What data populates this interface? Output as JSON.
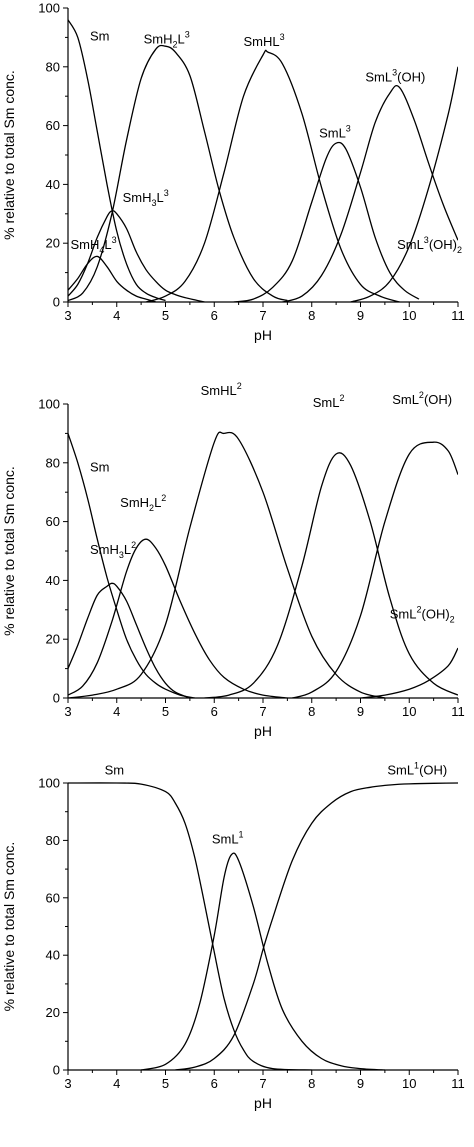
{
  "chart_data": [
    {
      "type": "line",
      "xlabel": "pH",
      "ylabel": "% relative to total Sm conc.",
      "xlim": [
        3,
        11
      ],
      "ylim": [
        0,
        100
      ],
      "xticks": [
        "3",
        "4",
        "5",
        "6",
        "7",
        "8",
        "9",
        "10",
        "11"
      ],
      "yticks": [
        "0",
        "20",
        "40",
        "60",
        "80",
        "100"
      ],
      "series": [
        {
          "name": "Sm",
          "x": [
            3,
            3.2,
            3.4,
            3.6,
            3.8,
            4,
            4.2,
            4.4,
            4.6,
            4.8,
            5
          ],
          "y": [
            96,
            90,
            76,
            58,
            40,
            24,
            13,
            6,
            3,
            1.5,
            0.5
          ]
        },
        {
          "name": "SmH4L3",
          "x": [
            3,
            3.2,
            3.4,
            3.6,
            3.8,
            4,
            4.2,
            4.4,
            4.6,
            4.8
          ],
          "y": [
            4,
            8,
            13,
            15.5,
            12,
            7,
            4,
            2,
            1,
            0
          ]
        },
        {
          "name": "SmH3L3",
          "x": [
            3,
            3.2,
            3.4,
            3.6,
            3.8,
            3.9,
            4,
            4.2,
            4.4,
            4.6,
            4.8,
            5,
            5.2,
            5.4,
            5.8
          ],
          "y": [
            2,
            6,
            13,
            22,
            29,
            31,
            30,
            25,
            17,
            11,
            7,
            4,
            2.5,
            1.5,
            0
          ]
        },
        {
          "name": "SmH2L3",
          "x": [
            3,
            3.3,
            3.6,
            3.9,
            4.2,
            4.5,
            4.8,
            5.0,
            5.2,
            5.5,
            5.8,
            6.1,
            6.4,
            6.8,
            7.2,
            7.5
          ],
          "y": [
            0.5,
            3,
            12,
            30,
            55,
            76,
            86,
            87,
            85,
            77,
            58,
            38,
            22,
            8,
            2,
            0.5
          ]
        },
        {
          "name": "SmHL3",
          "x": [
            4.6,
            5,
            5.4,
            5.8,
            6.2,
            6.6,
            7,
            7.1,
            7.4,
            7.8,
            8.2,
            8.6,
            9,
            9.4,
            9.8
          ],
          "y": [
            0,
            2,
            7,
            20,
            44,
            70,
            84,
            85,
            81,
            64,
            39,
            18,
            6,
            2,
            0
          ]
        },
        {
          "name": "SmL3",
          "x": [
            6.4,
            6.8,
            7.2,
            7.6,
            8,
            8.3,
            8.5,
            8.7,
            9,
            9.3,
            9.6,
            9.9,
            10.2
          ],
          "y": [
            0,
            1,
            5,
            14,
            34,
            49,
            54,
            52,
            39,
            22,
            10,
            4,
            1
          ]
        },
        {
          "name": "SmL3(OH)",
          "x": [
            7.4,
            7.8,
            8.2,
            8.6,
            9,
            9.3,
            9.6,
            9.8,
            10.1,
            10.4,
            10.7,
            11
          ],
          "y": [
            0,
            2,
            9,
            23,
            44,
            61,
            71,
            73,
            62,
            47,
            33,
            21
          ]
        },
        {
          "name": "SmL3(OH)2",
          "x": [
            8.8,
            9.2,
            9.6,
            10,
            10.4,
            10.8,
            11
          ],
          "y": [
            0,
            2,
            7,
            19,
            39,
            64,
            80
          ]
        }
      ],
      "annotations": [
        {
          "series": "Sm",
          "base": "Sm",
          "sub": "",
          "mid": "",
          "sub2": "",
          "sup": "",
          "tail": "",
          "x": 3.45,
          "y": 89
        },
        {
          "series": "SmH4L3",
          "base": "SmH",
          "sub": "4",
          "mid": "L",
          "sub2": "",
          "sup": "3",
          "tail": "",
          "x": 3.05,
          "y": 18
        },
        {
          "series": "SmH3L3",
          "base": "SmH",
          "sub": "3",
          "mid": "L",
          "sub2": "",
          "sup": "3",
          "tail": "",
          "x": 4.12,
          "y": 34
        },
        {
          "series": "SmH2L3",
          "base": "SmH",
          "sub": "2",
          "mid": "L",
          "sub2": "",
          "sup": "3",
          "tail": "",
          "x": 4.55,
          "y": 88
        },
        {
          "series": "SmHL3",
          "base": "SmHL",
          "sub": "",
          "mid": "",
          "sub2": "",
          "sup": "3",
          "tail": "",
          "x": 6.6,
          "y": 87
        },
        {
          "series": "SmL3",
          "base": "SmL",
          "sub": "",
          "mid": "",
          "sub2": "",
          "sup": "3",
          "tail": "",
          "x": 8.15,
          "y": 56
        },
        {
          "series": "SmL3(OH)",
          "base": "SmL",
          "sub": "",
          "mid": "",
          "sub2": "",
          "sup": "3",
          "tail": "(OH)",
          "x": 9.1,
          "y": 75
        },
        {
          "series": "SmL3(OH)2",
          "base": "SmL",
          "sub": "",
          "mid": "",
          "sub2": "",
          "sup": "3",
          "tail": "(OH)",
          "tail_sub": "2",
          "x": 9.75,
          "y": 18
        }
      ]
    },
    {
      "type": "line",
      "xlabel": "pH",
      "ylabel": "% relative to total Sm conc.",
      "xlim": [
        3,
        11
      ],
      "ylim": [
        0,
        100
      ],
      "xticks": [
        "3",
        "4",
        "5",
        "6",
        "7",
        "8",
        "9",
        "10",
        "11"
      ],
      "yticks": [
        "0",
        "20",
        "40",
        "60",
        "80",
        "100"
      ],
      "series": [
        {
          "name": "Sm",
          "x": [
            3,
            3.2,
            3.4,
            3.6,
            3.8,
            4,
            4.2,
            4.4,
            4.6,
            4.8,
            5,
            5.3,
            5.6
          ],
          "y": [
            90,
            80,
            68,
            54,
            41,
            30,
            20,
            13,
            8,
            5,
            3,
            1,
            0
          ]
        },
        {
          "name": "SmH3L2",
          "x": [
            3,
            3.2,
            3.4,
            3.6,
            3.8,
            3.9,
            4,
            4.2,
            4.4,
            4.6,
            4.8,
            5,
            5.2,
            5.5
          ],
          "y": [
            10,
            18,
            27,
            35,
            38,
            39,
            38,
            33,
            25,
            17,
            10,
            5,
            2,
            0
          ]
        },
        {
          "name": "SmH2L2",
          "x": [
            3,
            3.3,
            3.6,
            3.9,
            4.2,
            4.4,
            4.6,
            4.8,
            5,
            5.3,
            5.6,
            5.9,
            6.2,
            6.6,
            7,
            7.5
          ],
          "y": [
            1,
            4,
            12,
            26,
            43,
            51,
            54,
            51,
            45,
            33,
            22,
            13,
            7,
            3,
            1,
            0
          ]
        },
        {
          "name": "SmHL2",
          "x": [
            3,
            3.5,
            4,
            4.5,
            5,
            5.5,
            6,
            6.2,
            6.5,
            7,
            7.5,
            8,
            8.5,
            9,
            9.5
          ],
          "y": [
            0,
            1,
            3,
            8,
            25,
            58,
            87,
            90,
            88,
            70,
            44,
            21,
            8,
            2,
            0
          ]
        },
        {
          "name": "SmL2",
          "x": [
            5.8,
            6.3,
            6.8,
            7.3,
            7.8,
            8.2,
            8.5,
            8.8,
            9.2,
            9.6,
            10,
            10.5,
            11
          ],
          "y": [
            0,
            1,
            5,
            18,
            45,
            72,
            83,
            79,
            60,
            34,
            15,
            5,
            1
          ]
        },
        {
          "name": "SmL2(OH)",
          "x": [
            7.6,
            8,
            8.5,
            9,
            9.5,
            10,
            10.5,
            10.8,
            11
          ],
          "y": [
            0,
            2,
            9,
            28,
            60,
            83,
            87,
            84,
            76
          ]
        },
        {
          "name": "SmL2(OH)2",
          "x": [
            9,
            9.5,
            10,
            10.4,
            10.8,
            11
          ],
          "y": [
            0,
            1,
            3,
            6,
            11,
            17
          ]
        }
      ],
      "annotations": [
        {
          "series": "Sm",
          "base": "Sm",
          "sub": "",
          "mid": "",
          "sub2": "",
          "sup": "",
          "tail": "",
          "x": 3.45,
          "y": 77
        },
        {
          "series": "SmH3L2",
          "base": "SmH",
          "sub": "3",
          "mid": "L",
          "sub2": "",
          "sup": "2",
          "tail": "",
          "x": 3.45,
          "y": 49
        },
        {
          "series": "SmH2L2",
          "base": "SmH",
          "sub": "2",
          "mid": "L",
          "sub2": "",
          "sup": "2",
          "tail": "",
          "x": 4.07,
          "y": 65
        },
        {
          "series": "SmHL2",
          "base": "SmHL",
          "sub": "",
          "mid": "",
          "sub2": "",
          "sup": "2",
          "tail": "",
          "x": 5.72,
          "y": 103
        },
        {
          "series": "SmL2",
          "base": "SmL",
          "sub": "",
          "mid": "",
          "sub2": "",
          "sup": "2",
          "tail": "",
          "x": 8.02,
          "y": 99
        },
        {
          "series": "SmL2(OH)",
          "base": "SmL",
          "sub": "",
          "mid": "",
          "sub2": "",
          "sup": "2",
          "tail": "(OH)",
          "x": 9.65,
          "y": 100
        },
        {
          "series": "SmL2(OH)2",
          "base": "SmL",
          "sub": "",
          "mid": "",
          "sub2": "",
          "sup": "2",
          "tail": "(OH)",
          "tail_sub": "2",
          "x": 9.6,
          "y": 27
        }
      ]
    },
    {
      "type": "line",
      "xlabel": "pH",
      "ylabel": "% relative to total Sm conc.",
      "xlim": [
        3,
        11
      ],
      "ylim": [
        0,
        100
      ],
      "xticks": [
        "3",
        "4",
        "5",
        "6",
        "7",
        "8",
        "9",
        "10",
        "11"
      ],
      "yticks": [
        "0",
        "20",
        "40",
        "60",
        "80",
        "100"
      ],
      "series": [
        {
          "name": "Sm",
          "x": [
            3,
            4,
            4.5,
            5,
            5.2,
            5.4,
            5.6,
            5.8,
            6,
            6.2,
            6.4,
            6.6,
            6.8,
            7.2,
            8
          ],
          "y": [
            100,
            100,
            99.6,
            97,
            93,
            86,
            74,
            58,
            41,
            25,
            14,
            7,
            3,
            0.5,
            0
          ]
        },
        {
          "name": "SmL1",
          "x": [
            4.5,
            5,
            5.4,
            5.7,
            6,
            6.2,
            6.35,
            6.5,
            6.8,
            7.1,
            7.4,
            7.8,
            8.2,
            8.6,
            9,
            9.5
          ],
          "y": [
            0,
            2,
            9,
            23,
            47,
            67,
            75,
            73,
            57,
            37,
            21,
            10,
            4,
            1.5,
            0.5,
            0
          ]
        },
        {
          "name": "SmL1(OH)",
          "x": [
            5.2,
            5.6,
            6,
            6.4,
            6.8,
            7,
            7.2,
            7.6,
            8,
            8.4,
            8.8,
            9.2,
            9.6,
            10,
            10.5,
            11
          ],
          "y": [
            0,
            1,
            4,
            12,
            30,
            42,
            53,
            73,
            86,
            93,
            97,
            98.5,
            99.3,
            99.7,
            99.9,
            100
          ]
        }
      ],
      "annotations": [
        {
          "series": "Sm",
          "base": "Sm",
          "sub": "",
          "mid": "",
          "sub2": "",
          "sup": "",
          "tail": "",
          "x": 3.75,
          "y": 103
        },
        {
          "series": "SmL1",
          "base": "SmL",
          "sub": "",
          "mid": "",
          "sub2": "",
          "sup": "1",
          "tail": "",
          "x": 5.95,
          "y": 79
        },
        {
          "series": "SmL1(OH)",
          "base": "SmL",
          "sub": "",
          "mid": "",
          "sub2": "",
          "sup": "1",
          "tail": "(OH)",
          "x": 9.55,
          "y": 103
        }
      ]
    }
  ]
}
